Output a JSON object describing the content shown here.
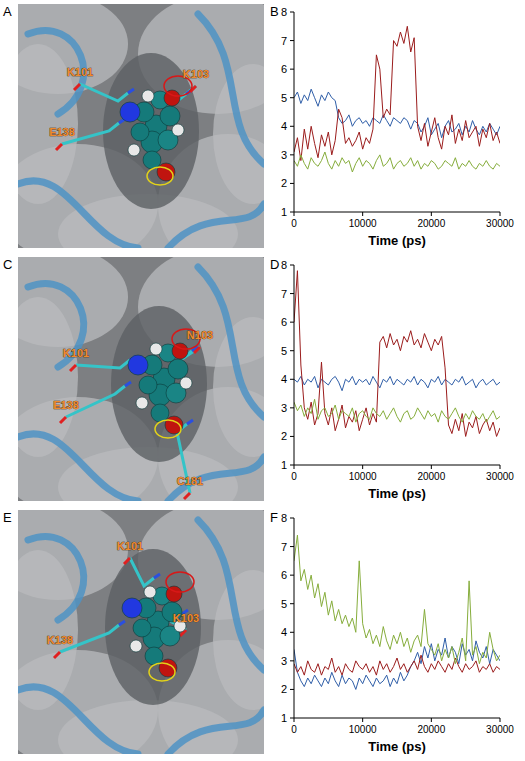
{
  "structures": [
    {
      "panel_label": "A",
      "residues": [
        "K101",
        "K103",
        "E138"
      ]
    },
    {
      "panel_label": "C",
      "residues": [
        "K101",
        "N103",
        "E138",
        "C181"
      ]
    },
    {
      "panel_label": "E",
      "residues": [
        "K101",
        "K103",
        "K138"
      ]
    }
  ],
  "chart_data": [
    {
      "type": "line",
      "panel_label": "B",
      "x_label": "Time (ps)",
      "xlim": [
        0,
        30000
      ],
      "xticks": [
        0,
        10000,
        20000,
        30000
      ],
      "ylim": [
        1,
        8
      ],
      "yticks": [
        1,
        2,
        3,
        4,
        5,
        6,
        7,
        8
      ],
      "grid": false,
      "x": [
        0,
        500,
        1000,
        1500,
        2000,
        2500,
        3000,
        3500,
        4000,
        4500,
        5000,
        5500,
        6000,
        6500,
        7000,
        7500,
        8000,
        8500,
        9000,
        9500,
        10000,
        10500,
        11000,
        11500,
        12000,
        12500,
        13000,
        13500,
        14000,
        14500,
        15000,
        15500,
        16000,
        16500,
        17000,
        17500,
        18000,
        18500,
        19000,
        19500,
        20000,
        20500,
        21000,
        21500,
        22000,
        22500,
        23000,
        23500,
        24000,
        24500,
        25000,
        25500,
        26000,
        26500,
        27000,
        27500,
        28000,
        28500,
        29000,
        29500,
        30000
      ],
      "series": [
        {
          "color": "#2f5ea8",
          "values": [
            5.0,
            5.2,
            4.8,
            5.1,
            4.9,
            5.3,
            5.0,
            4.7,
            5.1,
            4.9,
            5.2,
            5.0,
            4.9,
            4.3,
            4.1,
            4.2,
            4.4,
            4.0,
            4.2,
            4.3,
            4.1,
            4.2,
            4.0,
            4.3,
            4.2,
            4.1,
            4.4,
            4.2,
            4.0,
            4.3,
            4.2,
            4.1,
            4.3,
            4.2,
            3.9,
            4.2,
            4.1,
            3.8,
            4.0,
            4.3,
            3.7,
            3.9,
            4.1,
            3.6,
            4.0,
            4.2,
            3.8,
            3.9,
            4.1,
            3.7,
            4.0,
            3.8,
            4.2,
            3.9,
            3.7,
            4.0,
            3.8,
            4.1,
            3.9,
            3.7,
            4.0
          ]
        },
        {
          "color": "#9b1c1c",
          "values": [
            3.1,
            3.6,
            2.8,
            3.9,
            3.2,
            4.0,
            3.4,
            2.9,
            3.7,
            3.3,
            3.8,
            3.0,
            3.5,
            4.6,
            4.3,
            3.4,
            3.6,
            3.3,
            3.5,
            3.8,
            3.2,
            3.6,
            3.4,
            3.9,
            6.5,
            6.0,
            4.3,
            4.6,
            4.4,
            7.0,
            6.8,
            7.3,
            6.9,
            7.5,
            6.6,
            7.1,
            4.0,
            3.5,
            4.1,
            3.3,
            3.8,
            4.3,
            3.6,
            3.2,
            4.0,
            3.7,
            4.4,
            3.4,
            3.9,
            3.5,
            4.2,
            3.6,
            3.8,
            4.0,
            3.3,
            3.9,
            3.6,
            4.1,
            3.5,
            3.8,
            3.4
          ]
        },
        {
          "color": "#86ad3c",
          "values": [
            2.8,
            2.6,
            3.0,
            2.7,
            2.5,
            2.9,
            2.7,
            2.6,
            2.8,
            3.1,
            2.7,
            2.5,
            2.8,
            2.6,
            2.9,
            2.7,
            2.8,
            2.4,
            2.7,
            2.9,
            2.6,
            2.8,
            2.7,
            2.5,
            2.8,
            3.0,
            2.6,
            2.7,
            2.9,
            2.5,
            2.7,
            2.8,
            2.6,
            2.7,
            2.9,
            2.6,
            2.8,
            2.5,
            2.7,
            2.6,
            2.8,
            2.7,
            2.5,
            2.6,
            2.8,
            2.7,
            2.6,
            2.9,
            2.5,
            2.7,
            2.6,
            2.8,
            2.6,
            2.5,
            2.7,
            2.6,
            2.8,
            2.6,
            2.5,
            2.7,
            2.6
          ]
        }
      ]
    },
    {
      "type": "line",
      "panel_label": "D",
      "x_label": "Time (ps)",
      "xlim": [
        0,
        30000
      ],
      "xticks": [
        0,
        10000,
        20000,
        30000
      ],
      "ylim": [
        1,
        8
      ],
      "yticks": [
        1,
        2,
        3,
        4,
        5,
        6,
        7,
        8
      ],
      "grid": false,
      "x": [
        0,
        500,
        1000,
        1500,
        2000,
        2500,
        3000,
        3500,
        4000,
        4500,
        5000,
        5500,
        6000,
        6500,
        7000,
        7500,
        8000,
        8500,
        9000,
        9500,
        10000,
        10500,
        11000,
        11500,
        12000,
        12500,
        13000,
        13500,
        14000,
        14500,
        15000,
        15500,
        16000,
        16500,
        17000,
        17500,
        18000,
        18500,
        19000,
        19500,
        20000,
        20500,
        21000,
        21500,
        22000,
        22500,
        23000,
        23500,
        24000,
        24500,
        25000,
        25500,
        26000,
        26500,
        27000,
        27500,
        28000,
        28500,
        29000,
        29500,
        30000
      ],
      "series": [
        {
          "color": "#2f5ea8",
          "values": [
            4.0,
            3.9,
            4.1,
            3.8,
            4.0,
            3.9,
            4.1,
            3.7,
            4.0,
            3.9,
            3.8,
            4.0,
            4.1,
            3.9,
            3.6,
            4.0,
            3.9,
            4.1,
            3.8,
            4.0,
            3.9,
            4.0,
            3.8,
            4.1,
            3.9,
            3.7,
            4.0,
            3.9,
            4.1,
            3.8,
            4.0,
            3.9,
            3.8,
            4.0,
            3.9,
            4.1,
            3.8,
            4.0,
            3.9,
            3.7,
            4.0,
            3.9,
            4.1,
            3.8,
            4.0,
            3.9,
            3.8,
            4.0,
            3.9,
            4.1,
            3.8,
            3.9,
            4.0,
            3.7,
            3.9,
            4.0,
            3.8,
            3.9,
            4.0,
            3.8,
            3.9
          ]
        },
        {
          "color": "#9b1c1c",
          "values": [
            6.0,
            7.8,
            4.5,
            3.0,
            2.6,
            3.2,
            2.4,
            2.8,
            4.6,
            2.8,
            2.4,
            3.0,
            2.2,
            2.6,
            3.1,
            2.3,
            2.7,
            2.5,
            2.9,
            2.2,
            2.6,
            3.0,
            2.4,
            2.8,
            2.5,
            5.3,
            5.5,
            5.1,
            5.6,
            5.2,
            5.4,
            5.0,
            5.5,
            5.3,
            5.7,
            5.2,
            5.4,
            5.1,
            5.6,
            5.3,
            5.0,
            5.4,
            5.2,
            5.5,
            4.4,
            2.4,
            2.1,
            2.6,
            2.2,
            2.8,
            2.0,
            2.5,
            2.3,
            2.7,
            2.1,
            2.4,
            2.6,
            2.2,
            2.5,
            2.0,
            2.3
          ]
        },
        {
          "color": "#86ad3c",
          "values": [
            3.2,
            2.9,
            3.1,
            2.7,
            3.0,
            2.8,
            3.3,
            2.6,
            2.9,
            3.0,
            2.7,
            2.8,
            3.1,
            2.6,
            2.9,
            2.8,
            2.7,
            3.0,
            2.5,
            2.8,
            2.9,
            2.7,
            2.6,
            3.0,
            2.8,
            2.7,
            2.9,
            2.6,
            2.8,
            3.0,
            2.7,
            2.5,
            2.8,
            2.9,
            2.6,
            2.7,
            3.0,
            2.8,
            2.6,
            2.9,
            2.7,
            2.8,
            2.5,
            2.9,
            2.7,
            2.6,
            2.8,
            3.0,
            2.7,
            2.5,
            2.8,
            2.6,
            2.9,
            2.7,
            2.6,
            2.8,
            2.5,
            2.7,
            2.9,
            2.6,
            2.7
          ]
        }
      ]
    },
    {
      "type": "line",
      "panel_label": "F",
      "x_label": "Time (ps)",
      "xlim": [
        0,
        30000
      ],
      "xticks": [
        0,
        10000,
        20000,
        30000
      ],
      "ylim": [
        1,
        8
      ],
      "yticks": [
        1,
        2,
        3,
        4,
        5,
        6,
        7,
        8
      ],
      "grid": false,
      "x": [
        0,
        500,
        1000,
        1500,
        2000,
        2500,
        3000,
        3500,
        4000,
        4500,
        5000,
        5500,
        6000,
        6500,
        7000,
        7500,
        8000,
        8500,
        9000,
        9500,
        10000,
        10500,
        11000,
        11500,
        12000,
        12500,
        13000,
        13500,
        14000,
        14500,
        15000,
        15500,
        16000,
        16500,
        17000,
        17500,
        18000,
        18500,
        19000,
        19500,
        20000,
        20500,
        21000,
        21500,
        22000,
        22500,
        23000,
        23500,
        24000,
        24500,
        25000,
        25500,
        26000,
        26500,
        27000,
        27500,
        28000,
        28500,
        29000,
        29500,
        30000
      ],
      "series": [
        {
          "color": "#2f5ea8",
          "values": [
            3.4,
            2.6,
            2.3,
            2.1,
            2.4,
            2.2,
            2.5,
            2.3,
            2.1,
            2.4,
            2.2,
            2.6,
            2.3,
            2.1,
            2.5,
            2.2,
            2.4,
            2.3,
            2.0,
            2.4,
            2.2,
            2.5,
            2.3,
            2.1,
            2.4,
            2.2,
            2.3,
            2.5,
            2.1,
            2.4,
            2.2,
            2.6,
            2.3,
            2.5,
            2.8,
            3.0,
            3.3,
            2.9,
            3.5,
            3.1,
            3.6,
            3.0,
            3.4,
            3.2,
            3.8,
            3.1,
            3.5,
            3.3,
            2.9,
            3.6,
            3.2,
            3.4,
            3.0,
            3.7,
            3.3,
            3.1,
            3.5,
            2.9,
            3.4,
            3.2,
            3.0
          ]
        },
        {
          "color": "#9b1c1c",
          "values": [
            2.9,
            2.6,
            2.8,
            2.5,
            3.0,
            2.7,
            2.6,
            2.9,
            2.5,
            2.8,
            2.7,
            3.1,
            2.6,
            2.8,
            2.5,
            2.9,
            2.7,
            2.6,
            3.0,
            2.8,
            2.7,
            2.9,
            2.6,
            2.8,
            2.5,
            3.0,
            2.7,
            2.9,
            2.6,
            2.8,
            3.1,
            2.7,
            2.9,
            2.6,
            2.8,
            3.0,
            2.7,
            3.2,
            2.8,
            2.6,
            2.9,
            2.7,
            3.0,
            2.8,
            2.6,
            2.9,
            2.7,
            3.1,
            2.8,
            2.6,
            2.9,
            2.7,
            2.8,
            3.0,
            2.6,
            2.8,
            2.7,
            2.9,
            2.6,
            2.8,
            2.7
          ]
        },
        {
          "color": "#86ad3c",
          "values": [
            6.5,
            7.4,
            5.8,
            6.2,
            5.5,
            6.0,
            5.2,
            5.7,
            4.9,
            5.4,
            4.6,
            5.1,
            4.4,
            4.8,
            4.3,
            4.6,
            4.2,
            4.5,
            4.0,
            6.5,
            4.3,
            3.8,
            4.1,
            3.6,
            3.9,
            3.5,
            4.2,
            3.7,
            3.4,
            3.9,
            3.6,
            4.0,
            3.5,
            3.8,
            3.3,
            3.7,
            3.9,
            3.5,
            4.8,
            3.6,
            3.4,
            3.2,
            3.6,
            3.0,
            3.4,
            3.1,
            3.5,
            2.9,
            3.3,
            3.8,
            3.0,
            5.8,
            3.2,
            3.5,
            2.9,
            3.3,
            3.1,
            4.0,
            3.4,
            3.0,
            3.2
          ]
        }
      ]
    }
  ]
}
